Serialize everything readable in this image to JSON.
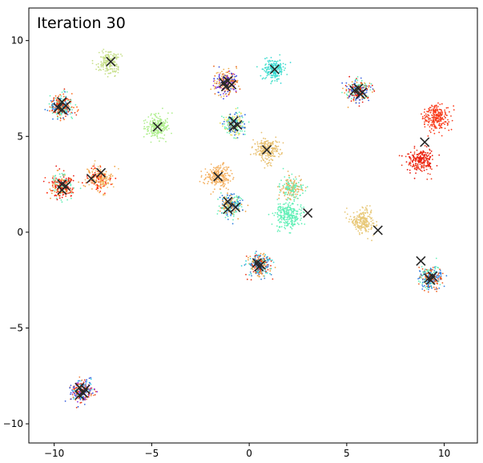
{
  "chart_data": {
    "type": "scatter",
    "title": "Iteration 30",
    "xlabel": "",
    "ylabel": "",
    "xlim": [
      -11.3,
      11.7
    ],
    "ylim": [
      -11.0,
      11.7
    ],
    "xticks": [
      -10,
      -5,
      0,
      5,
      10
    ],
    "yticks": [
      10,
      5,
      0,
      -5,
      -10
    ],
    "grid": false,
    "legend": "none",
    "clusters": [
      {
        "x": -9.6,
        "y": 6.6,
        "spread": 0.3,
        "n": 260,
        "colors": [
          "#e83a1a",
          "#2f7fe0",
          "#65f0b8",
          "#ff6a1a"
        ]
      },
      {
        "x": -9.6,
        "y": 2.4,
        "spread": 0.3,
        "n": 260,
        "colors": [
          "#e81a10",
          "#65f0b8",
          "#ff3a1a",
          "#f0a040"
        ]
      },
      {
        "x": -7.7,
        "y": 2.8,
        "spread": 0.32,
        "n": 220,
        "colors": [
          "#ff2a10",
          "#f4a040",
          "#f0c070"
        ]
      },
      {
        "x": -7.2,
        "y": 8.9,
        "spread": 0.3,
        "n": 200,
        "colors": [
          "#c8e08c"
        ]
      },
      {
        "x": -4.7,
        "y": 5.5,
        "spread": 0.3,
        "n": 200,
        "colors": [
          "#aeee8c"
        ]
      },
      {
        "x": -8.6,
        "y": -8.3,
        "spread": 0.28,
        "n": 260,
        "colors": [
          "#e83a1a",
          "#3a5fe0",
          "#35d0e8",
          "#8a2be2",
          "#f08040"
        ]
      },
      {
        "x": -1.2,
        "y": 7.8,
        "spread": 0.3,
        "n": 260,
        "colors": [
          "#e86a20",
          "#3a4fe0",
          "#f0b050",
          "#8a2be2"
        ]
      },
      {
        "x": 1.3,
        "y": 8.5,
        "spread": 0.28,
        "n": 200,
        "colors": [
          "#35d6d6",
          "#45e0c8"
        ]
      },
      {
        "x": -0.8,
        "y": 5.6,
        "spread": 0.28,
        "n": 240,
        "colors": [
          "#2f6fe0",
          "#65f0b8",
          "#e8e060"
        ]
      },
      {
        "x": -1.6,
        "y": 2.9,
        "spread": 0.3,
        "n": 220,
        "colors": [
          "#f4b060"
        ]
      },
      {
        "x": -0.9,
        "y": 1.4,
        "spread": 0.28,
        "n": 220,
        "colors": [
          "#65f0b8",
          "#2f7fe0",
          "#f0a040"
        ]
      },
      {
        "x": 0.9,
        "y": 4.3,
        "spread": 0.3,
        "n": 220,
        "colors": [
          "#e8c070"
        ]
      },
      {
        "x": 2.2,
        "y": 2.3,
        "spread": 0.3,
        "n": 200,
        "colors": [
          "#65f0b8",
          "#e8b060"
        ]
      },
      {
        "x": 2.0,
        "y": 0.9,
        "spread": 0.32,
        "n": 260,
        "colors": [
          "#65f0b8"
        ]
      },
      {
        "x": 0.5,
        "y": -1.7,
        "spread": 0.3,
        "n": 260,
        "colors": [
          "#e83a1a",
          "#4080d0",
          "#f0a040",
          "#35d6d6"
        ]
      },
      {
        "x": 5.6,
        "y": 7.4,
        "spread": 0.3,
        "n": 260,
        "colors": [
          "#e81a10",
          "#3a5fe0",
          "#f0a040",
          "#65f0b8"
        ]
      },
      {
        "x": 5.8,
        "y": 0.6,
        "spread": 0.32,
        "n": 220,
        "colors": [
          "#e8c878"
        ]
      },
      {
        "x": 9.6,
        "y": 6.0,
        "spread": 0.32,
        "n": 240,
        "colors": [
          "#f04020",
          "#ff3a1a"
        ]
      },
      {
        "x": 8.8,
        "y": 3.7,
        "spread": 0.32,
        "n": 240,
        "colors": [
          "#f04020",
          "#e81a10"
        ]
      },
      {
        "x": 9.3,
        "y": -2.4,
        "spread": 0.3,
        "n": 240,
        "colors": [
          "#65f0b8",
          "#2f7fe0",
          "#f06020"
        ]
      }
    ],
    "centroids": [
      [
        -9.6,
        6.8
      ],
      [
        -9.6,
        6.4
      ],
      [
        -9.4,
        6.6
      ],
      [
        -9.8,
        6.5
      ],
      [
        -9.6,
        2.5
      ],
      [
        -9.6,
        2.2
      ],
      [
        -9.4,
        2.4
      ],
      [
        -8.1,
        2.8
      ],
      [
        -7.6,
        3.1
      ],
      [
        -7.1,
        8.9
      ],
      [
        -4.7,
        5.5
      ],
      [
        -8.7,
        -8.1
      ],
      [
        -8.5,
        -8.4
      ],
      [
        -8.7,
        -8.5
      ],
      [
        -8.4,
        -8.2
      ],
      [
        -1.3,
        7.8
      ],
      [
        -1.1,
        7.9
      ],
      [
        -1.2,
        7.6
      ],
      [
        -0.9,
        7.7
      ],
      [
        1.3,
        8.5
      ],
      [
        -0.8,
        5.8
      ],
      [
        -0.8,
        5.5
      ],
      [
        -0.6,
        5.6
      ],
      [
        -1.6,
        2.9
      ],
      [
        -1.1,
        1.6
      ],
      [
        -1.1,
        1.2
      ],
      [
        -0.7,
        1.3
      ],
      [
        0.9,
        4.3
      ],
      [
        3.0,
        1.0
      ],
      [
        0.4,
        -1.6
      ],
      [
        0.5,
        -1.8
      ],
      [
        0.6,
        -1.7
      ],
      [
        5.4,
        7.4
      ],
      [
        5.6,
        7.5
      ],
      [
        5.8,
        7.3
      ],
      [
        5.7,
        7.2
      ],
      [
        6.6,
        0.1
      ],
      [
        9.0,
        4.7
      ],
      [
        8.8,
        -1.5
      ],
      [
        9.2,
        -2.4
      ],
      [
        9.4,
        -2.3
      ],
      [
        9.3,
        -2.5
      ]
    ]
  }
}
